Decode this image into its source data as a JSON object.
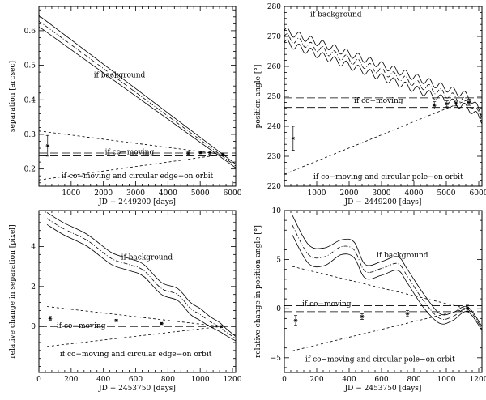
{
  "chart_data": [
    {
      "type": "line",
      "panel": "top-left",
      "xlabel": "JD − 2449200 [days]",
      "ylabel": "separation [arcsec]",
      "xlim": [
        0,
        6100
      ],
      "ylim": [
        0.15,
        0.67
      ],
      "xticks": [
        1000,
        2000,
        3000,
        4000,
        5000,
        6000
      ],
      "yticks": [
        0.2,
        0.3,
        0.4,
        0.5,
        0.6
      ],
      "ytick_labels": [
        "0.2",
        "0.3",
        "0.4",
        "0.5",
        "0.6"
      ],
      "series": [
        {
          "name": "if background",
          "style": "solid",
          "x": [
            0,
            5700,
            6100
          ],
          "y": [
            0.644,
            0.242,
            0.214
          ]
        },
        {
          "name": "if background (center)",
          "style": "dashdot",
          "x": [
            0,
            5700,
            6100
          ],
          "y": [
            0.628,
            0.236,
            0.208
          ]
        },
        {
          "name": "if background (lower)",
          "style": "solid",
          "x": [
            0,
            5700,
            6100
          ],
          "y": [
            0.612,
            0.23,
            0.202
          ]
        },
        {
          "name": "if co-moving (upper)",
          "style": "longdash",
          "x": [
            0,
            6100
          ],
          "y": [
            0.246,
            0.246
          ]
        },
        {
          "name": "if co-moving (lower)",
          "style": "longdash",
          "x": [
            0,
            6100
          ],
          "y": [
            0.238,
            0.238
          ]
        },
        {
          "name": "orbit upper",
          "style": "shortdash",
          "x": [
            0,
            5700
          ],
          "y": [
            0.31,
            0.242
          ]
        },
        {
          "name": "orbit lower",
          "style": "shortdash",
          "x": [
            0,
            5700
          ],
          "y": [
            0.168,
            0.242
          ]
        }
      ],
      "points": {
        "x": [
          270,
          4630,
          5020,
          5300,
          5700
        ],
        "y": [
          0.267,
          0.245,
          0.248,
          0.247,
          0.242
        ],
        "err": [
          0.03,
          0.004,
          0.004,
          0.004,
          0.004
        ]
      },
      "annotations": [
        {
          "text": "if background",
          "x": 1700,
          "y": 0.465
        },
        {
          "text": "if co−moving",
          "x": 2050,
          "y": 0.243
        },
        {
          "text": "if co−moving and circular edge−on orbit",
          "x": 700,
          "y": 0.173
        }
      ]
    },
    {
      "type": "line",
      "panel": "top-right",
      "xlabel": "JD − 2449200 [days]",
      "ylabel": "position angle [°]",
      "xlim": [
        0,
        6100
      ],
      "ylim": [
        220,
        280
      ],
      "xticks": [
        1000,
        2000,
        3000,
        4000,
        5000,
        6000
      ],
      "yticks": [
        220,
        230,
        240,
        250,
        260,
        270,
        280
      ],
      "ytick_labels": [
        "220",
        "230",
        "240",
        "250",
        "260",
        "270",
        "280"
      ],
      "series": [
        {
          "name": "if background",
          "style": "solid",
          "x": [
            0,
            5700,
            6100
          ],
          "y": [
            272,
            250,
            244
          ],
          "wiggle": 1.2
        },
        {
          "name": "if background (center)",
          "style": "dashdot",
          "x": [
            0,
            5700,
            6100
          ],
          "y": [
            270,
            248,
            243
          ],
          "wiggle": 1.2
        },
        {
          "name": "if background (lower)",
          "style": "solid",
          "x": [
            0,
            5700,
            6100
          ],
          "y": [
            268,
            246,
            242
          ],
          "wiggle": 1.2
        },
        {
          "name": "if co-moving (upper)",
          "style": "longdash",
          "x": [
            0,
            6100
          ],
          "y": [
            249.5,
            249.5
          ]
        },
        {
          "name": "if co-moving (lower)",
          "style": "longdash",
          "x": [
            0,
            6100
          ],
          "y": [
            246.3,
            246.3
          ]
        },
        {
          "name": "orbit",
          "style": "shortdash",
          "x": [
            0,
            5700
          ],
          "y": [
            224,
            249
          ]
        }
      ],
      "points": {
        "x": [
          270,
          4630,
          5020,
          5300,
          5700
        ],
        "y": [
          236,
          247,
          247.5,
          247.8,
          248
        ],
        "err": [
          4,
          1.2,
          1,
          1,
          1
        ]
      },
      "annotations": [
        {
          "text": "if background",
          "x": 800,
          "y": 276.6
        },
        {
          "text": "if co−moving",
          "x": 2150,
          "y": 247.8
        },
        {
          "text": "if co−moving and circular pole−on orbit",
          "x": 900,
          "y": 222.4
        }
      ]
    },
    {
      "type": "line",
      "panel": "bottom-left",
      "xlabel": "JD − 2453750 [days]",
      "ylabel": "relative change in separation [pixel]",
      "xlim": [
        0,
        1220
      ],
      "ylim": [
        -2.3,
        5.8
      ],
      "xticks": [
        0,
        200,
        400,
        600,
        800,
        1000,
        1200
      ],
      "yticks": [
        0,
        2,
        4
      ],
      "ytick_labels": [
        "0",
        "2",
        "4"
      ],
      "series": [
        {
          "name": "if background",
          "style": "solid",
          "x": [
            50,
            150,
            300,
            450,
            560,
            650,
            760,
            860,
            940,
            1000,
            1060,
            1120,
            1160,
            1220
          ],
          "y": [
            5.7,
            5.2,
            4.6,
            3.7,
            3.4,
            3.1,
            2.2,
            1.9,
            1.2,
            0.9,
            0.5,
            0.2,
            -0.1,
            -0.5
          ]
        },
        {
          "name": "if background (center)",
          "style": "dashdot",
          "x": [
            50,
            150,
            300,
            450,
            560,
            650,
            760,
            860,
            940,
            1000,
            1060,
            1120,
            1160,
            1220
          ],
          "y": [
            5.4,
            4.9,
            4.3,
            3.4,
            3.1,
            2.8,
            1.9,
            1.6,
            0.9,
            0.6,
            0.25,
            -0.02,
            -0.28,
            -0.6
          ]
        },
        {
          "name": "if background (lower)",
          "style": "solid",
          "x": [
            50,
            150,
            300,
            450,
            560,
            650,
            760,
            860,
            940,
            1000,
            1060,
            1120,
            1160,
            1220
          ],
          "y": [
            5.1,
            4.6,
            4.0,
            3.1,
            2.8,
            2.5,
            1.6,
            1.3,
            0.6,
            0.3,
            0.0,
            -0.25,
            -0.45,
            -0.72
          ]
        },
        {
          "name": "if co-moving",
          "style": "longdash",
          "x": [
            0,
            1220
          ],
          "y": [
            0,
            0
          ]
        },
        {
          "name": "orbit upper",
          "style": "shortdash",
          "x": [
            50,
            1130
          ],
          "y": [
            1.0,
            0
          ]
        },
        {
          "name": "orbit lower",
          "style": "shortdash",
          "x": [
            50,
            1130
          ],
          "y": [
            -1.0,
            0
          ]
        }
      ],
      "points": {
        "x": [
          70,
          480,
          760,
          1130
        ],
        "y": [
          0.4,
          0.3,
          0.15,
          0.0
        ],
        "err": [
          0.1,
          0.05,
          0.05,
          0.05
        ]
      },
      "annotations": [
        {
          "text": "if background",
          "x": 510,
          "y": 3.35
        },
        {
          "text": "if co−moving",
          "x": 110,
          "y": -0.08
        },
        {
          "text": "if co−moving and circular edge−on orbit",
          "x": 130,
          "y": -1.5
        }
      ]
    },
    {
      "type": "line",
      "panel": "bottom-right",
      "xlabel": "JD − 2453750 [days]",
      "ylabel": "relative change in position angle [°]",
      "xlim": [
        0,
        1220
      ],
      "ylim": [
        -6.5,
        10
      ],
      "xticks": [
        0,
        200,
        400,
        600,
        800,
        1000,
        1200
      ],
      "yticks": [
        -5,
        0,
        5,
        10
      ],
      "ytick_labels": [
        "−5",
        "0",
        "5",
        "10"
      ],
      "series": [
        {
          "name": "if background",
          "style": "solid",
          "x": [
            50,
            150,
            250,
            350,
            430,
            500,
            600,
            700,
            760,
            860,
            960,
            1040,
            1130,
            1220
          ],
          "y": [
            9.5,
            6.5,
            6.2,
            7.0,
            6.8,
            4.5,
            4.8,
            5.3,
            4.0,
            1.5,
            -0.5,
            -0.4,
            0.2,
            -1.8
          ]
        },
        {
          "name": "if background (center)",
          "style": "dashdot",
          "x": [
            50,
            150,
            250,
            350,
            430,
            500,
            600,
            700,
            760,
            860,
            960,
            1040,
            1130,
            1220
          ],
          "y": [
            8.5,
            5.5,
            5.3,
            6.3,
            6.0,
            3.8,
            4.1,
            4.6,
            3.3,
            0.8,
            -1.0,
            -0.8,
            -0.05,
            -2.0
          ]
        },
        {
          "name": "if background (lower)",
          "style": "solid",
          "x": [
            50,
            150,
            250,
            350,
            430,
            500,
            600,
            700,
            760,
            860,
            960,
            1040,
            1130,
            1220
          ],
          "y": [
            7.5,
            4.6,
            4.4,
            5.5,
            5.2,
            3.1,
            3.4,
            3.9,
            2.6,
            0.1,
            -1.5,
            -1.2,
            -0.3,
            -2.2
          ]
        },
        {
          "name": "if co-moving (upper)",
          "style": "longdash",
          "x": [
            0,
            1220
          ],
          "y": [
            0.3,
            0.3
          ]
        },
        {
          "name": "if co-moving (lower)",
          "style": "longdash",
          "x": [
            0,
            1220
          ],
          "y": [
            -0.3,
            -0.3
          ]
        },
        {
          "name": "orbit upper",
          "style": "shortdash",
          "x": [
            50,
            1130
          ],
          "y": [
            4.3,
            0
          ]
        },
        {
          "name": "orbit lower",
          "style": "shortdash",
          "x": [
            50,
            1130
          ],
          "y": [
            -4.3,
            0
          ]
        }
      ],
      "points": {
        "x": [
          70,
          480,
          760,
          1130
        ],
        "y": [
          -1.2,
          -0.8,
          -0.5,
          0.05
        ],
        "err": [
          0.5,
          0.3,
          0.3,
          0.3
        ]
      },
      "annotations": [
        {
          "text": "if background",
          "x": 570,
          "y": 5.2
        },
        {
          "text": "if co−moving",
          "x": 110,
          "y": 0.25
        },
        {
          "text": "if co−moving and circular pole−on orbit",
          "x": 130,
          "y": -5.4
        }
      ]
    }
  ]
}
